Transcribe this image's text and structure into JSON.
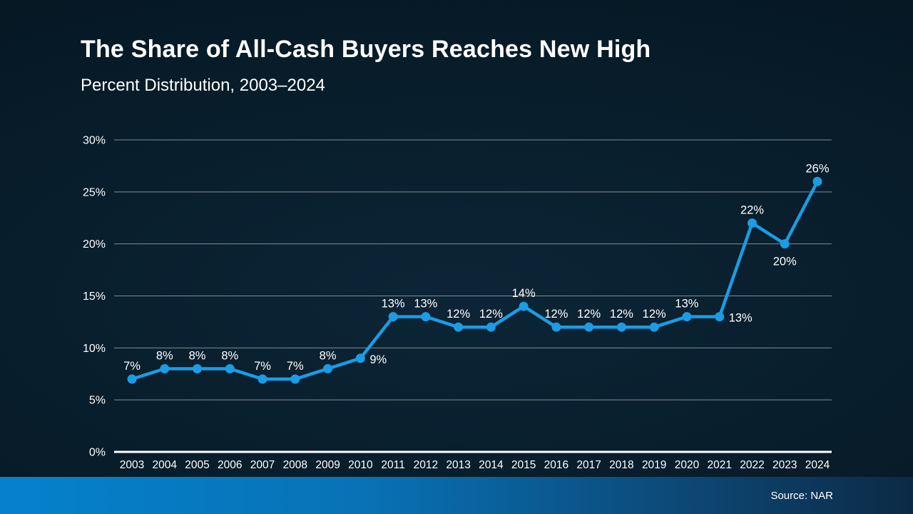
{
  "header": {
    "title": "The Share of All-Cash Buyers Reaches New High",
    "subtitle": "Percent Distribution, 2003–2024"
  },
  "footer": {
    "source": "Source: NAR"
  },
  "colors": {
    "line": "#1b9ce4",
    "marker": "#1b9ce4",
    "gridline": "#828c93",
    "axis_line": "#ffffff",
    "text": "#ffffff",
    "footer_bar_left": "#0581cc",
    "footer_bar_right": "#0c2a44",
    "background": "#07202e"
  },
  "chart_data": {
    "type": "line",
    "title": "The Share of All-Cash Buyers Reaches New High",
    "subtitle": "Percent Distribution, 2003–2024",
    "categories": [
      "2003",
      "2004",
      "2005",
      "2006",
      "2007",
      "2008",
      "2009",
      "2010",
      "2011",
      "2012",
      "2013",
      "2014",
      "2015",
      "2016",
      "2017",
      "2018",
      "2019",
      "2020",
      "2021",
      "2022",
      "2023",
      "2024"
    ],
    "values": [
      7,
      8,
      8,
      8,
      7,
      7,
      8,
      9,
      13,
      13,
      12,
      12,
      14,
      12,
      12,
      12,
      12,
      13,
      13,
      22,
      20,
      26
    ],
    "point_labels": [
      "7%",
      "8%",
      "8%",
      "8%",
      "7%",
      "7%",
      "8%",
      "9%",
      "13%",
      "13%",
      "12%",
      "12%",
      "14%",
      "12%",
      "12%",
      "12%",
      "12%",
      "13%",
      "13%",
      "22%",
      "20%",
      "26%"
    ],
    "label_placement": [
      "above",
      "above",
      "above",
      "above",
      "above",
      "above",
      "above",
      "right",
      "above",
      "above",
      "above",
      "above",
      "above",
      "above",
      "above",
      "above",
      "above",
      "above",
      "right",
      "above",
      "below",
      "above"
    ],
    "xlabel": "",
    "ylabel": "",
    "ylim": [
      0,
      30
    ],
    "ytick_step": 5,
    "yticks": [
      "0%",
      "5%",
      "10%",
      "15%",
      "20%",
      "25%",
      "30%"
    ],
    "grid": true,
    "legend": "none",
    "source": "Source: NAR"
  }
}
